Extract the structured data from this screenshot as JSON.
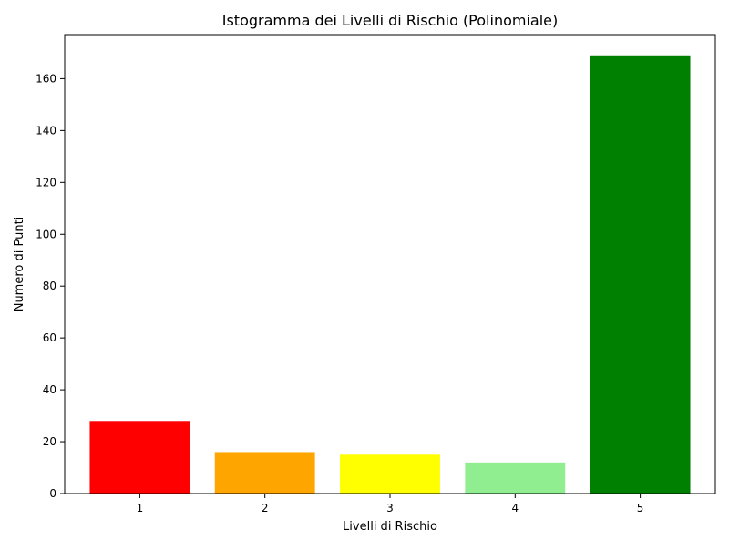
{
  "chart_data": {
    "type": "bar",
    "title": "Istogramma dei Livelli di Rischio (Polinomiale)",
    "xlabel": "Livelli di Rischio",
    "ylabel": "Numero di Punti",
    "categories": [
      "1",
      "2",
      "3",
      "4",
      "5"
    ],
    "values": [
      28,
      16,
      15,
      12,
      169
    ],
    "colors": [
      "#ff0000",
      "#ffa500",
      "#ffff00",
      "#90ee90",
      "#008000"
    ],
    "ylim": [
      0,
      177
    ],
    "yticks": [
      0,
      20,
      40,
      60,
      80,
      100,
      120,
      140,
      160
    ],
    "grid": false
  }
}
